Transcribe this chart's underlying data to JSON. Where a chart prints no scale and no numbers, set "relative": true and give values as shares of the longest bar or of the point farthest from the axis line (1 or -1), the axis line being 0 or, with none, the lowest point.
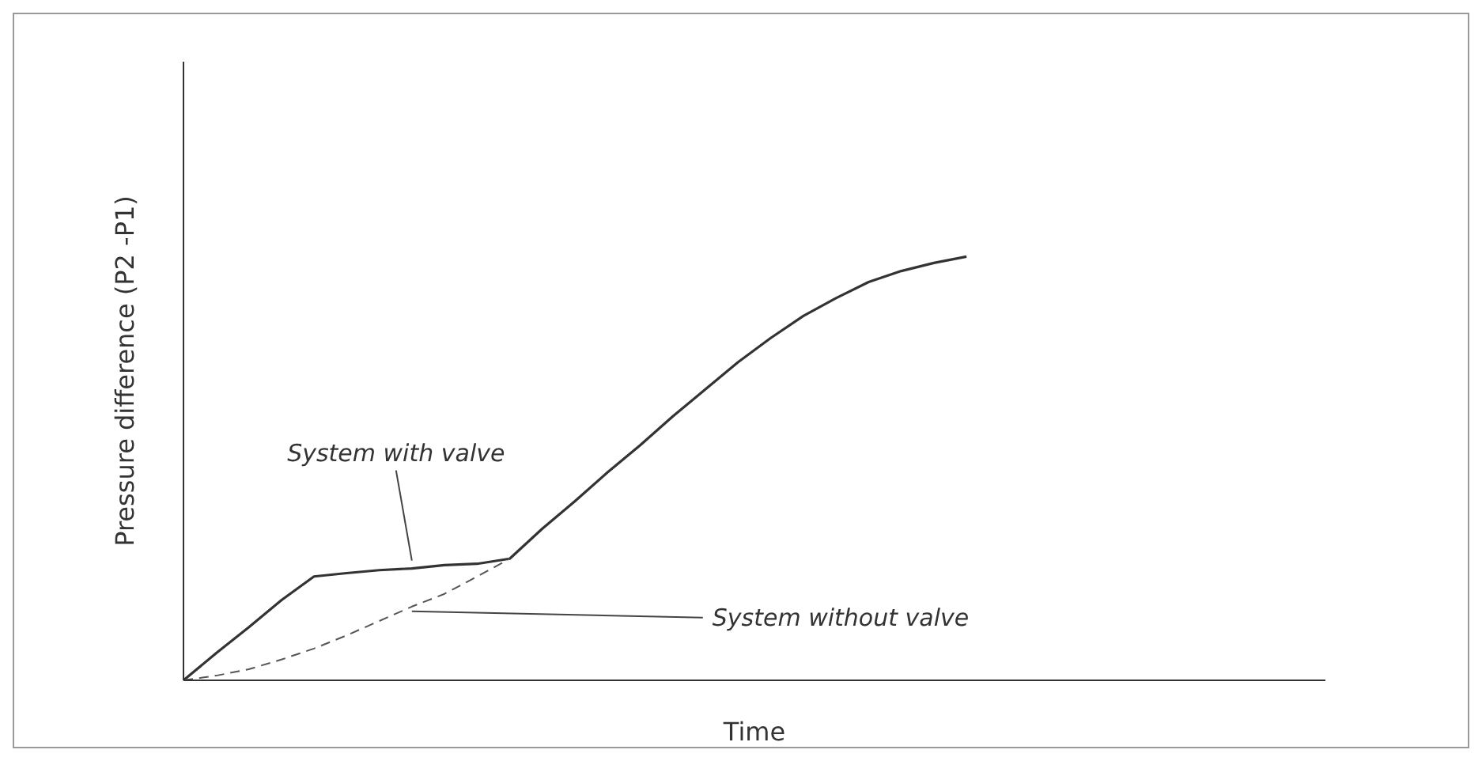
{
  "chart_data": {
    "type": "line",
    "relative": true,
    "xlabel": "Time",
    "ylabel": "Pressure difference (P2 -P1)",
    "marker": "none",
    "categories": [
      null,
      null,
      null,
      null,
      null,
      null,
      null,
      null,
      null,
      null,
      null,
      null,
      null,
      null,
      null,
      null,
      null,
      null,
      null,
      null,
      null,
      null,
      null,
      null,
      null,
      null,
      null,
      null,
      null,
      null,
      null,
      null,
      null,
      null,
      null,
      null
    ],
    "series": [
      {
        "color": "#333333",
        "line_style": "solid",
        "values": [
          0,
          0.064,
          0.125,
          0.189,
          0.245,
          0.253,
          0.26,
          0.264,
          0.272,
          0.275,
          0.287,
          0.358,
          0.423,
          0.491,
          0.555,
          0.623,
          0.687,
          0.751,
          0.808,
          0.86,
          0.902,
          0.94,
          0.966,
          0.985,
          1,
          null,
          null,
          null,
          null,
          null,
          null,
          null,
          null,
          null,
          null,
          null
        ]
      },
      {
        "color": "#555555",
        "line_style": "dashed",
        "values": [
          0,
          0.011,
          0.026,
          0.049,
          0.075,
          0.106,
          0.14,
          0.174,
          0.204,
          0.245,
          0.287,
          null,
          null,
          null,
          null,
          null,
          null,
          null,
          null,
          null,
          null,
          null,
          null,
          null,
          null,
          null,
          null,
          null,
          null,
          null,
          null,
          null,
          null,
          null,
          null,
          null
        ]
      }
    ],
    "annotations": [
      "System with valve",
      "System without valve"
    ]
  }
}
